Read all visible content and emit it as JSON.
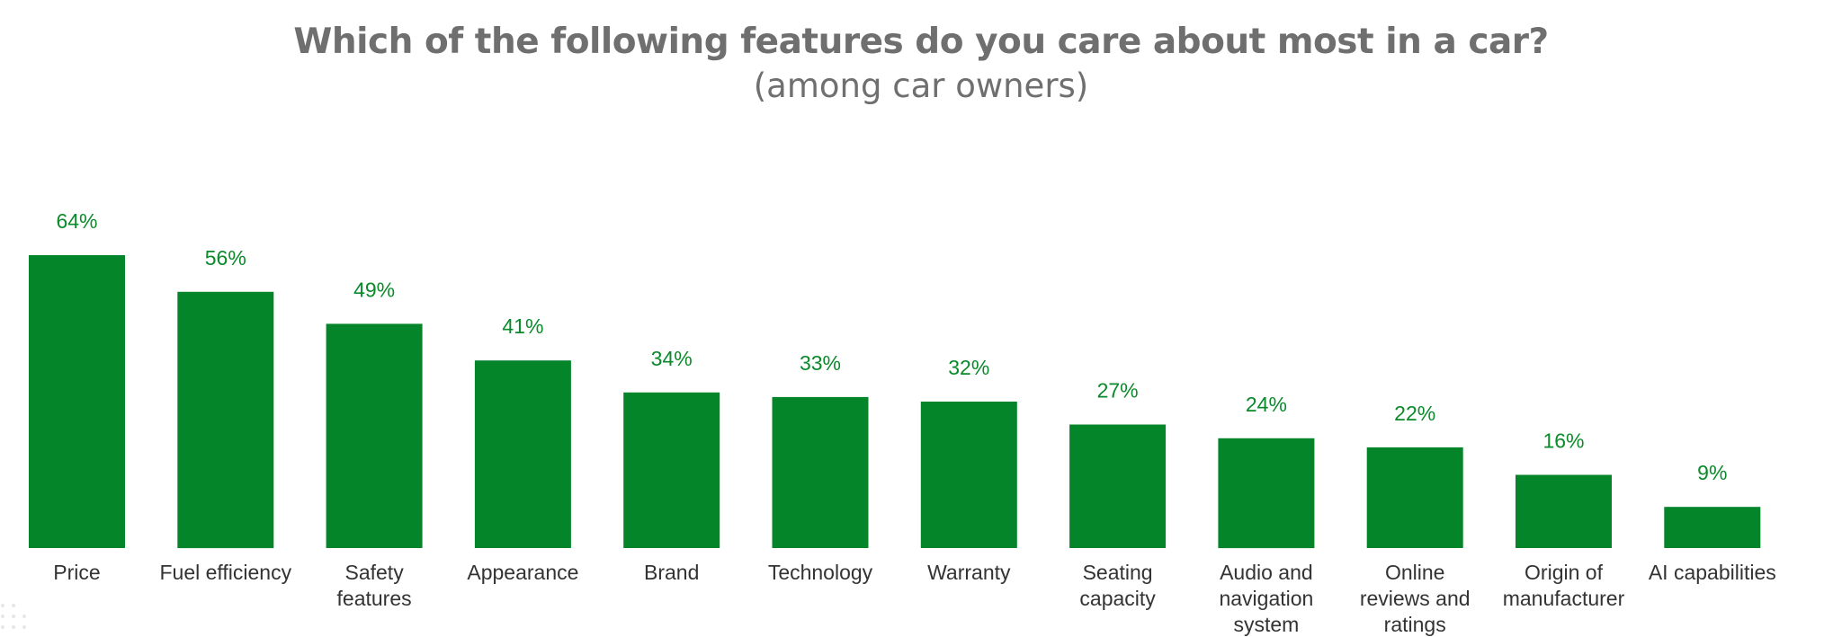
{
  "chart_data": {
    "type": "bar",
    "title": "Which of the following features do you care about most in a car?",
    "subtitle": "(among car owners)",
    "xlabel": "",
    "ylabel": "",
    "ylim": [
      0,
      64
    ],
    "grid": false,
    "unit": "%",
    "bar_color": "#05852a",
    "label_color": "#0a8a2a",
    "categories": [
      [
        "Price"
      ],
      [
        "Fuel efficiency"
      ],
      [
        "Safety",
        "features"
      ],
      [
        "Appearance"
      ],
      [
        "Brand"
      ],
      [
        "Technology"
      ],
      [
        "Warranty"
      ],
      [
        "Seating",
        "capacity"
      ],
      [
        "Audio and",
        "navigation",
        "system"
      ],
      [
        "Online",
        "reviews and",
        "ratings"
      ],
      [
        "Origin of",
        "manufacturer"
      ],
      [
        "AI capabilities"
      ]
    ],
    "values": [
      64,
      56,
      49,
      41,
      34,
      33,
      32,
      27,
      24,
      22,
      16,
      9
    ],
    "value_labels": [
      "64%",
      "56%",
      "49%",
      "41%",
      "34%",
      "33%",
      "32%",
      "27%",
      "24%",
      "22%",
      "16%",
      "9%"
    ]
  }
}
